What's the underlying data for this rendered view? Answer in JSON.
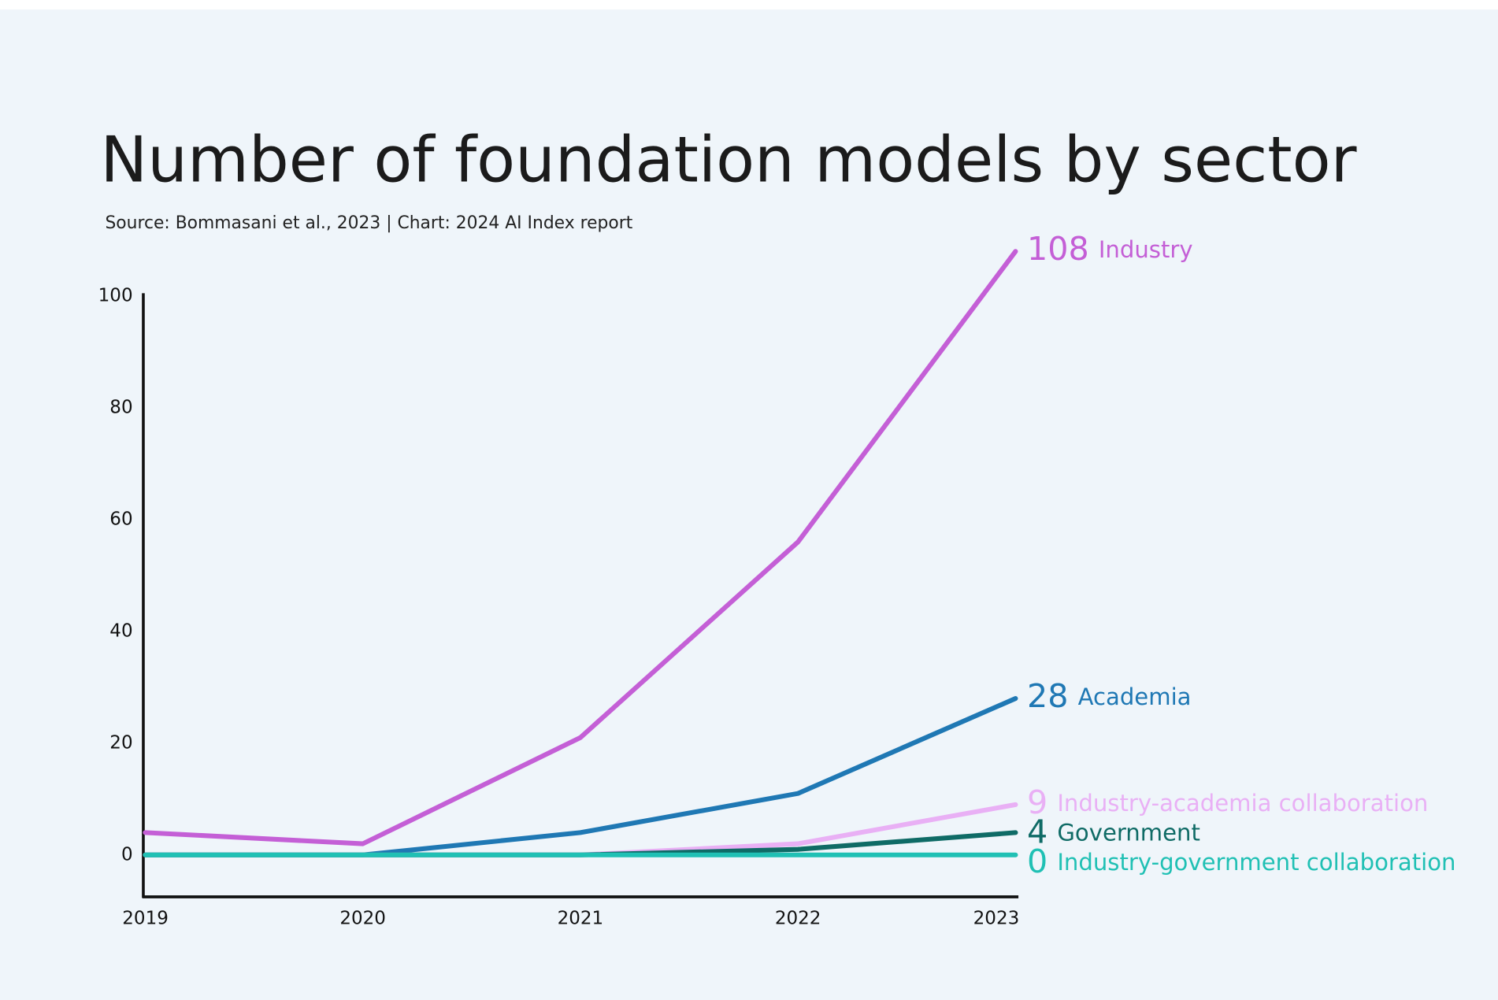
{
  "chart_data": {
    "type": "line",
    "title": "Number of foundation models by sector",
    "subtitle": "Source: Bommasani et al., 2023 | Chart: 2024 AI Index report",
    "categories": [
      "2019",
      "2020",
      "2021",
      "2022",
      "2023"
    ],
    "series": [
      {
        "name": "Industry",
        "color": "#c45fd6",
        "values": [
          4,
          2,
          21,
          56,
          108
        ]
      },
      {
        "name": "Academia",
        "color": "#1f78b4",
        "values": [
          0,
          0,
          4,
          11,
          28
        ]
      },
      {
        "name": "Industry-academia collaboration",
        "color": "#e9b0f5",
        "values": [
          0,
          0,
          0,
          2,
          9
        ]
      },
      {
        "name": "Government",
        "color": "#0f6b66",
        "values": [
          0,
          0,
          0,
          1,
          4
        ]
      },
      {
        "name": "Industry-government collaboration",
        "color": "#20c0b4",
        "values": [
          0,
          0,
          0,
          0,
          0
        ]
      }
    ],
    "ylim": [
      -7.5,
      100
    ],
    "yticks": [
      0,
      20,
      40,
      60,
      80,
      100
    ],
    "grid": false
  }
}
